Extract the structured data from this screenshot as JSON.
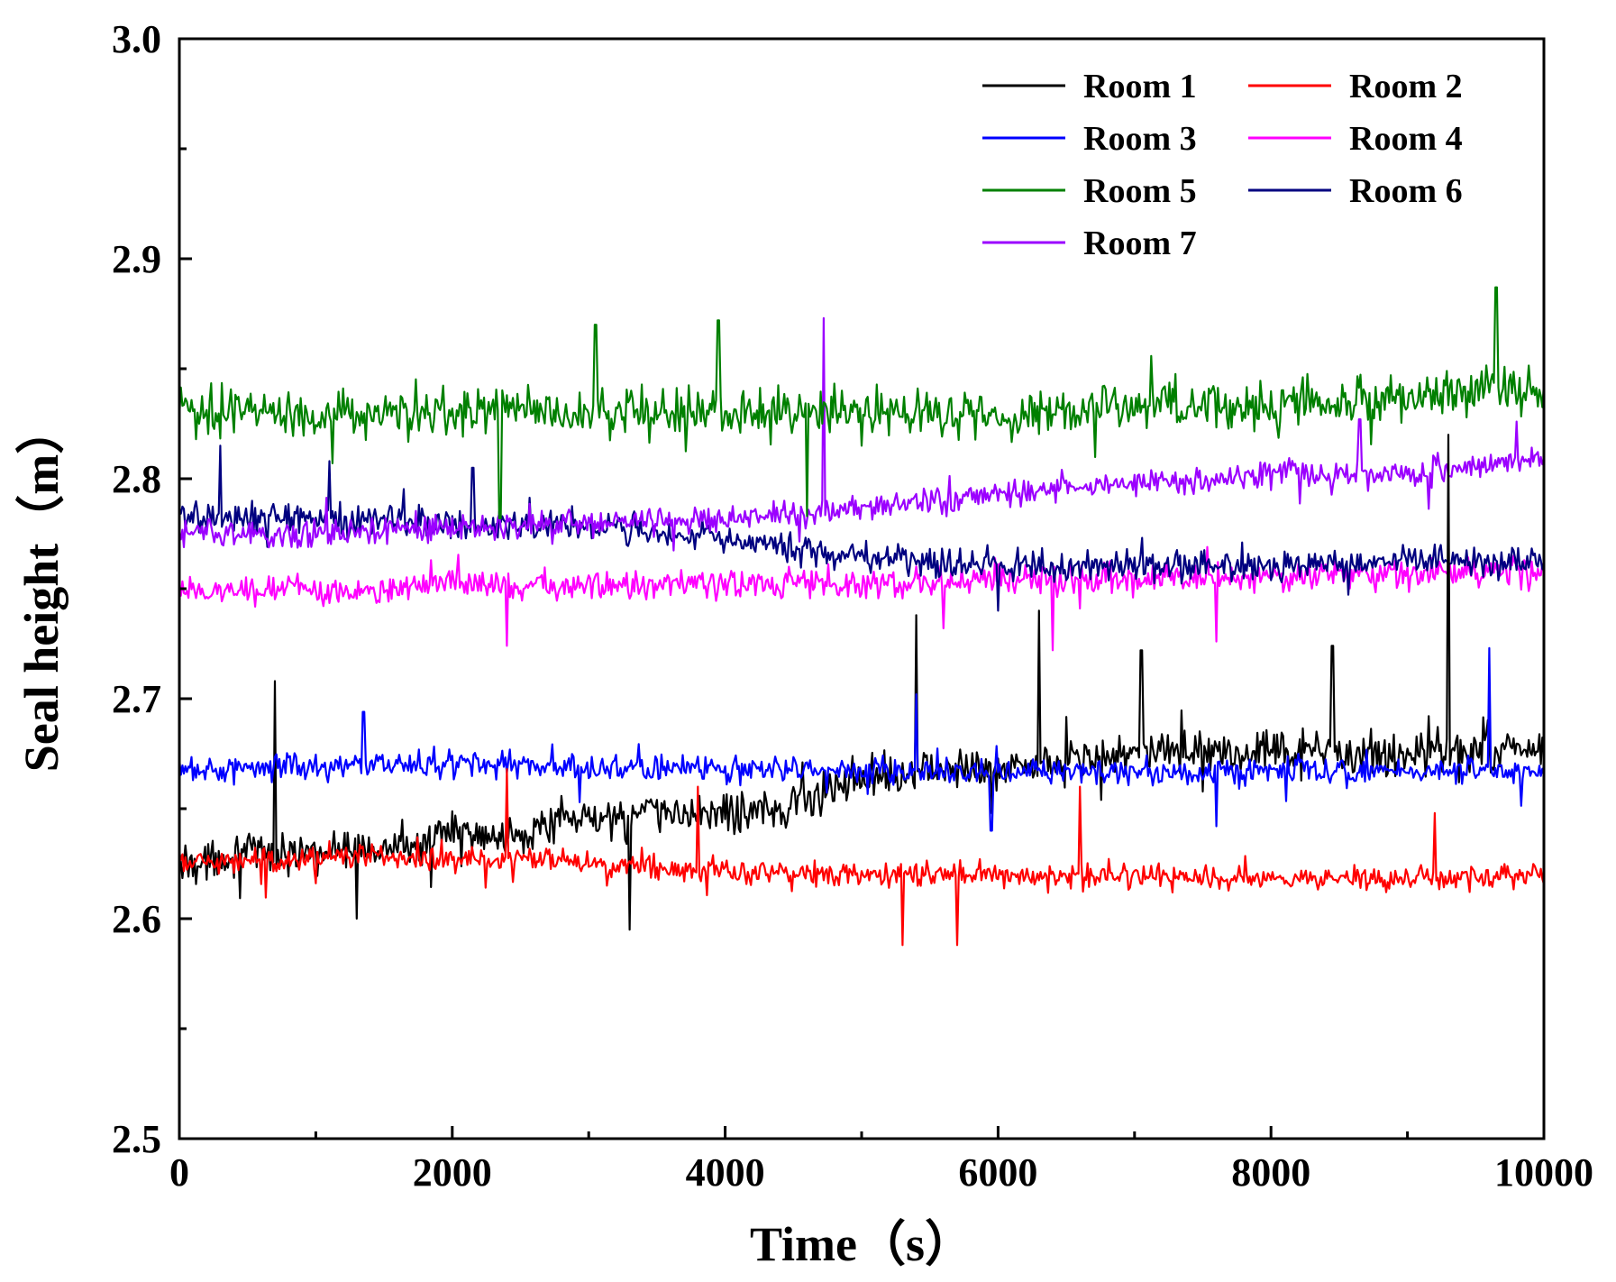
{
  "chart_data": {
    "type": "line",
    "title": "",
    "xlabel": "Time（s）",
    "ylabel": "Seal height（m）",
    "xlim": [
      0,
      10000
    ],
    "ylim": [
      2.5,
      3.0
    ],
    "xticks": [
      0,
      2000,
      4000,
      6000,
      8000,
      10000
    ],
    "xtick_labels": [
      "0",
      "2000",
      "4000",
      "6000",
      "8000",
      "10000"
    ],
    "xminor_step": 1000,
    "yticks": [
      2.5,
      2.6,
      2.7,
      2.8,
      2.9,
      3.0
    ],
    "ytick_labels": [
      "2.5",
      "2.6",
      "2.7",
      "2.8",
      "2.9",
      "3.0"
    ],
    "yminor_step": 0.05,
    "grid": false,
    "legend_position": "top-right",
    "x": [
      0,
      500,
      1000,
      1500,
      2000,
      2500,
      3000,
      3500,
      4000,
      4500,
      5000,
      5500,
      6000,
      6500,
      7000,
      7500,
      8000,
      8500,
      9000,
      9500,
      10000
    ],
    "series": [
      {
        "name": "Room 1",
        "color": "#000000",
        "noise": 0.014,
        "values": [
          2.625,
          2.63,
          2.63,
          2.632,
          2.638,
          2.64,
          2.645,
          2.648,
          2.648,
          2.652,
          2.665,
          2.668,
          2.668,
          2.672,
          2.675,
          2.675,
          2.675,
          2.675,
          2.675,
          2.677,
          2.678
        ],
        "spikes": [
          [
            700,
            2.708
          ],
          [
            1300,
            2.6
          ],
          [
            3300,
            2.595
          ],
          [
            5400,
            2.738
          ],
          [
            6300,
            2.74
          ],
          [
            7050,
            2.722
          ],
          [
            8450,
            2.724
          ],
          [
            9300,
            2.82
          ]
        ]
      },
      {
        "name": "Room 2",
        "color": "#ff0000",
        "noise": 0.008,
        "values": [
          2.625,
          2.627,
          2.627,
          2.628,
          2.627,
          2.627,
          2.625,
          2.622,
          2.622,
          2.621,
          2.62,
          2.62,
          2.62,
          2.62,
          2.62,
          2.619,
          2.618,
          2.618,
          2.618,
          2.619,
          2.62
        ],
        "spikes": [
          [
            2400,
            2.668
          ],
          [
            3800,
            2.66
          ],
          [
            5300,
            2.588
          ],
          [
            5700,
            2.588
          ],
          [
            6600,
            2.66
          ],
          [
            9200,
            2.648
          ]
        ]
      },
      {
        "name": "Room 3",
        "color": "#0000ff",
        "noise": 0.009,
        "values": [
          2.668,
          2.668,
          2.67,
          2.67,
          2.67,
          2.67,
          2.668,
          2.668,
          2.668,
          2.668,
          2.667,
          2.667,
          2.667,
          2.667,
          2.667,
          2.667,
          2.667,
          2.667,
          2.667,
          2.667,
          2.667
        ],
        "spikes": [
          [
            1350,
            2.694
          ],
          [
            5400,
            2.702
          ],
          [
            9600,
            2.723
          ],
          [
            5950,
            2.64
          ],
          [
            7600,
            2.642
          ]
        ]
      },
      {
        "name": "Room 4",
        "color": "#ff00ff",
        "noise": 0.01,
        "values": [
          2.748,
          2.75,
          2.75,
          2.75,
          2.752,
          2.752,
          2.752,
          2.752,
          2.752,
          2.752,
          2.752,
          2.753,
          2.754,
          2.754,
          2.754,
          2.755,
          2.755,
          2.756,
          2.757,
          2.757,
          2.757
        ],
        "spikes": [
          [
            2400,
            2.724
          ],
          [
            6400,
            2.722
          ],
          [
            7600,
            2.726
          ],
          [
            5600,
            2.732
          ]
        ]
      },
      {
        "name": "Room 5",
        "color": "#008000",
        "noise": 0.016,
        "values": [
          2.83,
          2.832,
          2.83,
          2.83,
          2.83,
          2.832,
          2.83,
          2.83,
          2.83,
          2.83,
          2.83,
          2.83,
          2.83,
          2.832,
          2.832,
          2.833,
          2.833,
          2.835,
          2.836,
          2.842,
          2.84
        ],
        "spikes": [
          [
            3050,
            2.87
          ],
          [
            3950,
            2.872
          ],
          [
            9650,
            2.887
          ],
          [
            2350,
            2.782
          ],
          [
            4600,
            2.783
          ]
        ]
      },
      {
        "name": "Room 6",
        "color": "#000080",
        "noise": 0.01,
        "values": [
          2.782,
          2.783,
          2.782,
          2.781,
          2.78,
          2.779,
          2.778,
          2.775,
          2.772,
          2.768,
          2.765,
          2.762,
          2.761,
          2.76,
          2.76,
          2.76,
          2.76,
          2.761,
          2.763,
          2.763,
          2.763
        ],
        "spikes": [
          [
            300,
            2.815
          ],
          [
            1100,
            2.808
          ],
          [
            2150,
            2.805
          ],
          [
            6000,
            2.74
          ]
        ]
      },
      {
        "name": "Room 7",
        "color": "#9b00ff",
        "noise": 0.009,
        "values": [
          2.775,
          2.776,
          2.775,
          2.776,
          2.778,
          2.779,
          2.78,
          2.781,
          2.782,
          2.784,
          2.787,
          2.79,
          2.793,
          2.796,
          2.798,
          2.8,
          2.802,
          2.802,
          2.802,
          2.805,
          2.81
        ],
        "spikes": [
          [
            4720,
            2.873
          ],
          [
            8650,
            2.827
          ],
          [
            9800,
            2.826
          ]
        ]
      }
    ]
  }
}
